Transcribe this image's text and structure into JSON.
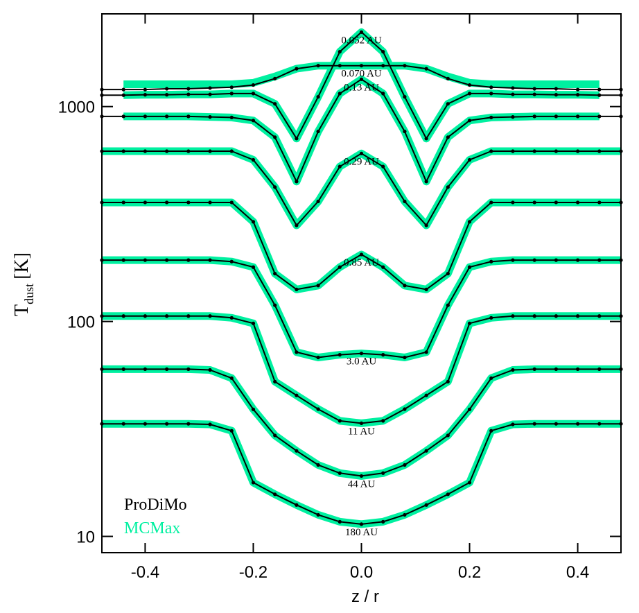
{
  "chart_data": {
    "type": "line",
    "log_y": true,
    "legend": "lower left",
    "x_label": "z / r",
    "y_label": "T",
    "y_label_sub": "dust",
    "y_label_unit": "[K]",
    "xlim": [
      -0.48,
      0.48
    ],
    "ylim": [
      8.4,
      2700
    ],
    "xticks": [
      -0.4,
      -0.2,
      {
        "value": 0,
        "label": "0.0"
      },
      0.2,
      0.4
    ],
    "yticks": [
      10,
      100,
      1000
    ],
    "x": [
      -0.48,
      -0.44,
      -0.4,
      -0.36,
      -0.32,
      -0.28,
      -0.24,
      -0.2,
      -0.16,
      -0.12,
      -0.08,
      -0.04,
      0,
      0.04,
      0.08,
      0.12,
      0.16,
      0.2,
      0.24,
      0.28,
      0.32,
      0.36,
      0.4,
      0.44,
      0.48
    ],
    "series": [
      {
        "name": "MCMax",
        "color": "#00f0a0",
        "lines": [
          {
            "values": [
              null,
              1130,
              1135,
              1135,
              1140,
              1140,
              1150,
              1150,
              1030,
              710,
              1110,
              1800,
              2220,
              1800,
              1110,
              710,
              1030,
              1150,
              1150,
              1140,
              1140,
              1135,
              1135,
              1130,
              null
            ]
          },
          {
            "values": [
              null,
              1270,
              1270,
              1270,
              1270,
              1270,
              1270,
              1290,
              1380,
              1500,
              1550,
              1550,
              1550,
              1550,
              1550,
              1500,
              1380,
              1290,
              1270,
              1270,
              1270,
              1270,
              1270,
              1270,
              null
            ]
          },
          {
            "values": [
              null,
              900,
              900,
              900,
              900,
              895,
              890,
              861,
              720,
              448,
              766,
              1150,
              1340,
              1150,
              766,
              448,
              720,
              861,
              890,
              895,
              900,
              900,
              900,
              900,
              null
            ]
          },
          {
            "values": [
              620,
              620,
              620,
              620,
              620,
              620,
              620,
              565,
              422,
              280,
              362,
              526,
              605,
              526,
              362,
              280,
              422,
              565,
              620,
              620,
              620,
              620,
              620,
              620,
              620
            ]
          },
          {
            "values": [
              358,
              358,
              358,
              358,
              358,
              358,
              358,
              291,
              167,
              141,
              147,
              179,
              205,
              179,
              147,
              141,
              167,
              291,
              358,
              358,
              358,
              358,
              358,
              358,
              358
            ]
          },
          {
            "values": [
              193,
              193,
              193,
              193,
              193,
              193,
              190,
              179,
              119,
              72,
              68,
              70,
              71,
              70,
              68,
              72,
              119,
              179,
              190,
              193,
              193,
              193,
              193,
              193,
              193
            ]
          },
          {
            "values": [
              106,
              106,
              106,
              106,
              106,
              106,
              104,
              98,
              52.5,
              45.3,
              39.1,
              34.5,
              33.6,
              34.5,
              39.1,
              45.3,
              52.5,
              98,
              104,
              106,
              106,
              106,
              106,
              106,
              106
            ]
          },
          {
            "values": [
              60,
              60,
              60,
              60,
              60,
              59.5,
              54.5,
              39,
              29.5,
              25.0,
              21.5,
              19.7,
              19.1,
              19.7,
              21.5,
              25.0,
              29.5,
              39,
              54.5,
              59.5,
              60,
              60,
              60,
              60,
              60
            ]
          },
          {
            "values": [
              33.4,
              33.4,
              33.4,
              33.4,
              33.4,
              33.2,
              31,
              17.8,
              15.7,
              14.0,
              12.6,
              11.7,
              11.4,
              11.7,
              12.6,
              14.0,
              15.7,
              17.8,
              31,
              33.2,
              33.4,
              33.4,
              33.4,
              33.4,
              33.4
            ]
          }
        ]
      },
      {
        "name": "ProDiMo",
        "color": "#000000",
        "lines": [
          {
            "label": "0.052 AU",
            "values": [
              1130,
              1130,
              1135,
              1135,
              1140,
              1140,
              1150,
              1150,
              1030,
              710,
              1110,
              1800,
              2220,
              1800,
              1110,
              710,
              1030,
              1150,
              1150,
              1140,
              1140,
              1135,
              1135,
              1130,
              1130
            ]
          },
          {
            "label": "0.070 AU",
            "values": [
              1200,
              1200,
              1200,
              1210,
              1210,
              1220,
              1230,
              1260,
              1350,
              1500,
              1550,
              1550,
              1550,
              1550,
              1550,
              1500,
              1350,
              1260,
              1230,
              1220,
              1210,
              1210,
              1200,
              1200,
              1200
            ]
          },
          {
            "label": "0.13 AU",
            "values": [
              900,
              900,
              900,
              900,
              900,
              895,
              890,
              861,
              720,
              448,
              766,
              1150,
              1340,
              1150,
              766,
              448,
              720,
              861,
              890,
              895,
              900,
              900,
              900,
              900,
              900
            ]
          },
          {
            "label": "0.29 AU",
            "values": [
              620,
              620,
              620,
              620,
              620,
              620,
              620,
              565,
              422,
              280,
              362,
              526,
              605,
              526,
              362,
              280,
              422,
              565,
              620,
              620,
              620,
              620,
              620,
              620,
              620
            ]
          },
          {
            "label": "0.85 AU",
            "values": [
              358,
              358,
              358,
              358,
              358,
              358,
              358,
              291,
              167,
              141,
              147,
              179,
              205,
              179,
              147,
              141,
              167,
              291,
              358,
              358,
              358,
              358,
              358,
              358,
              358
            ]
          },
          {
            "label": "3.0 AU",
            "values": [
              193,
              193,
              193,
              193,
              193,
              193,
              190,
              179,
              119,
              72,
              68,
              70,
              71,
              70,
              68,
              72,
              119,
              179,
              190,
              193,
              193,
              193,
              193,
              193,
              193
            ]
          },
          {
            "label": "11 AU",
            "values": [
              106,
              106,
              106,
              106,
              106,
              106,
              104,
              98,
              52.5,
              45.3,
              39.1,
              34.5,
              33.6,
              34.5,
              39.1,
              45.3,
              52.5,
              98,
              104,
              106,
              106,
              106,
              106,
              106,
              106
            ]
          },
          {
            "label": "44 AU",
            "values": [
              60,
              60,
              60,
              60,
              60,
              59.5,
              54.5,
              39,
              29.5,
              25.0,
              21.5,
              19.7,
              19.1,
              19.7,
              21.5,
              25.0,
              29.5,
              39,
              54.5,
              59.5,
              60,
              60,
              60,
              60,
              60
            ]
          },
          {
            "label": "180 AU",
            "values": [
              33.4,
              33.4,
              33.4,
              33.4,
              33.4,
              33.2,
              31,
              17.8,
              15.7,
              14.0,
              12.6,
              11.7,
              11.4,
              11.7,
              12.6,
              14.0,
              15.7,
              17.8,
              31,
              33.2,
              33.4,
              33.4,
              33.4,
              33.4,
              33.4
            ]
          }
        ]
      }
    ]
  }
}
